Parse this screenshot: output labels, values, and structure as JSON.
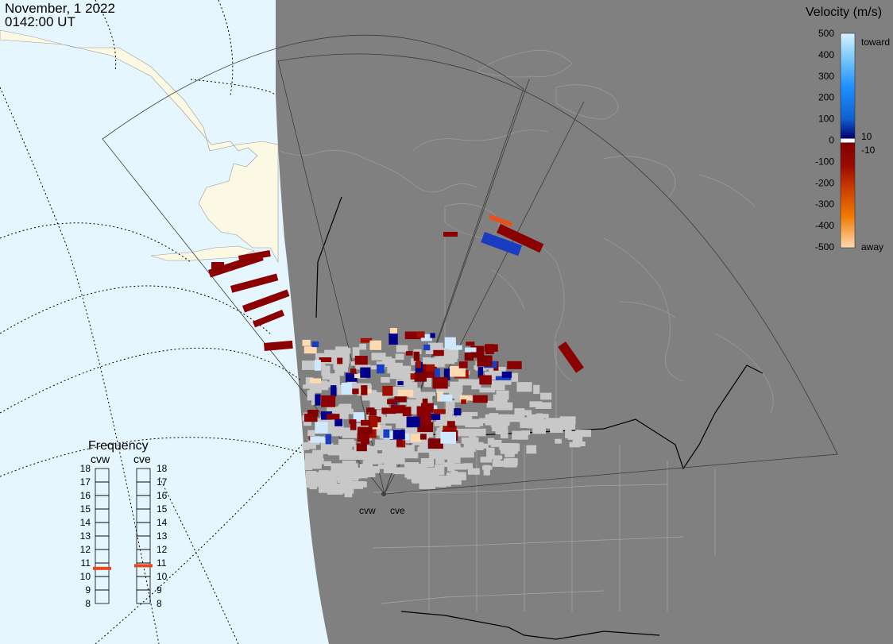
{
  "header": {
    "date": "November, 1 2022",
    "time": "0142:00 UT"
  },
  "velocity_scale": {
    "title": "Velocity (m/s)",
    "ticks": [
      "500",
      "400",
      "300",
      "200",
      "100",
      "0",
      "-100",
      "-200",
      "-300",
      "-400",
      "-500"
    ],
    "label_toward": "toward",
    "label_away": "away",
    "threshold_pos": "10",
    "threshold_neg": "-10",
    "colors": [
      "#d9f2ff",
      "#87cefa",
      "#1e90ff",
      "#1060d0",
      "#0b2fb0",
      "#00006b",
      "#7f0000",
      "#9c0b00",
      "#c83c00",
      "#f07800",
      "#ffa030",
      "#ffd9b0"
    ]
  },
  "frequency": {
    "title": "Frequency",
    "radars": [
      {
        "name": "cvw",
        "value": 10.6
      },
      {
        "name": "cve",
        "value": 10.8
      }
    ],
    "levels": [
      "18",
      "17",
      "16",
      "15",
      "14",
      "13",
      "12",
      "11",
      "10",
      "9",
      "8"
    ]
  },
  "radar_sites": [
    "cvw",
    "cve"
  ],
  "map_colors": {
    "ocean_light": "#e6f6ff",
    "land_light": "#fbf8e4",
    "night_shade": "#808080",
    "ground_scatter": "#c8c8c8"
  }
}
